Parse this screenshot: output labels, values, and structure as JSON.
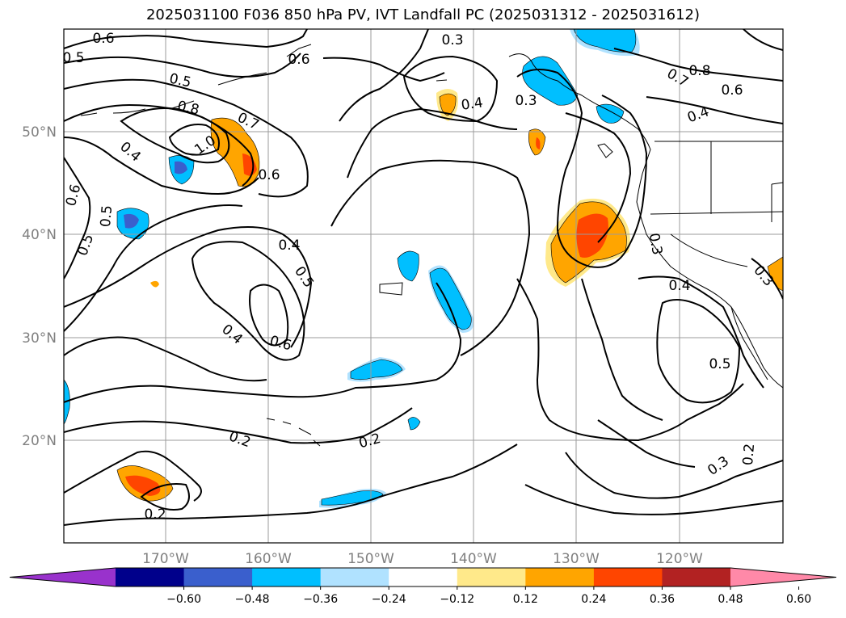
{
  "title": "2025031100 F036 850 hPa PV, IVT Landfall PC (2025031312 - 2025031612)",
  "lat_labels": [
    "50°N",
    "40°N",
    "30°N",
    "20°N"
  ],
  "lon_labels": [
    "170°W",
    "160°W",
    "150°W",
    "140°W",
    "130°W",
    "120°W"
  ],
  "contour_labels": [
    "0.6",
    "0.5",
    "0.5",
    "0.8",
    "0.6",
    "0.3",
    "0.4",
    "0.3",
    "0.7",
    "0.8",
    "0.6",
    "0.4",
    "0.7",
    "1.0",
    "0.4",
    "0.6",
    "0.6",
    "0.5",
    "0.5",
    "0.4",
    "0.5",
    "0.4",
    "0.6",
    "0.3",
    "0.4",
    "0.3",
    "0.5",
    "0.2",
    "0.2",
    "0.2",
    "0.3",
    "0.2"
  ],
  "colorbar": {
    "ticks": [
      "−0.60",
      "−0.48",
      "−0.36",
      "−0.24",
      "−0.12",
      "0.12",
      "0.24",
      "0.36",
      "0.48",
      "0.60"
    ],
    "colors": [
      "#9932cc",
      "#00008b",
      "#3a5fcd",
      "#00bfff",
      "#b0e2ff",
      "#ffffff",
      "#ffe98a",
      "#ffa500",
      "#ff4500",
      "#b22222",
      "#ff89a8"
    ]
  }
}
